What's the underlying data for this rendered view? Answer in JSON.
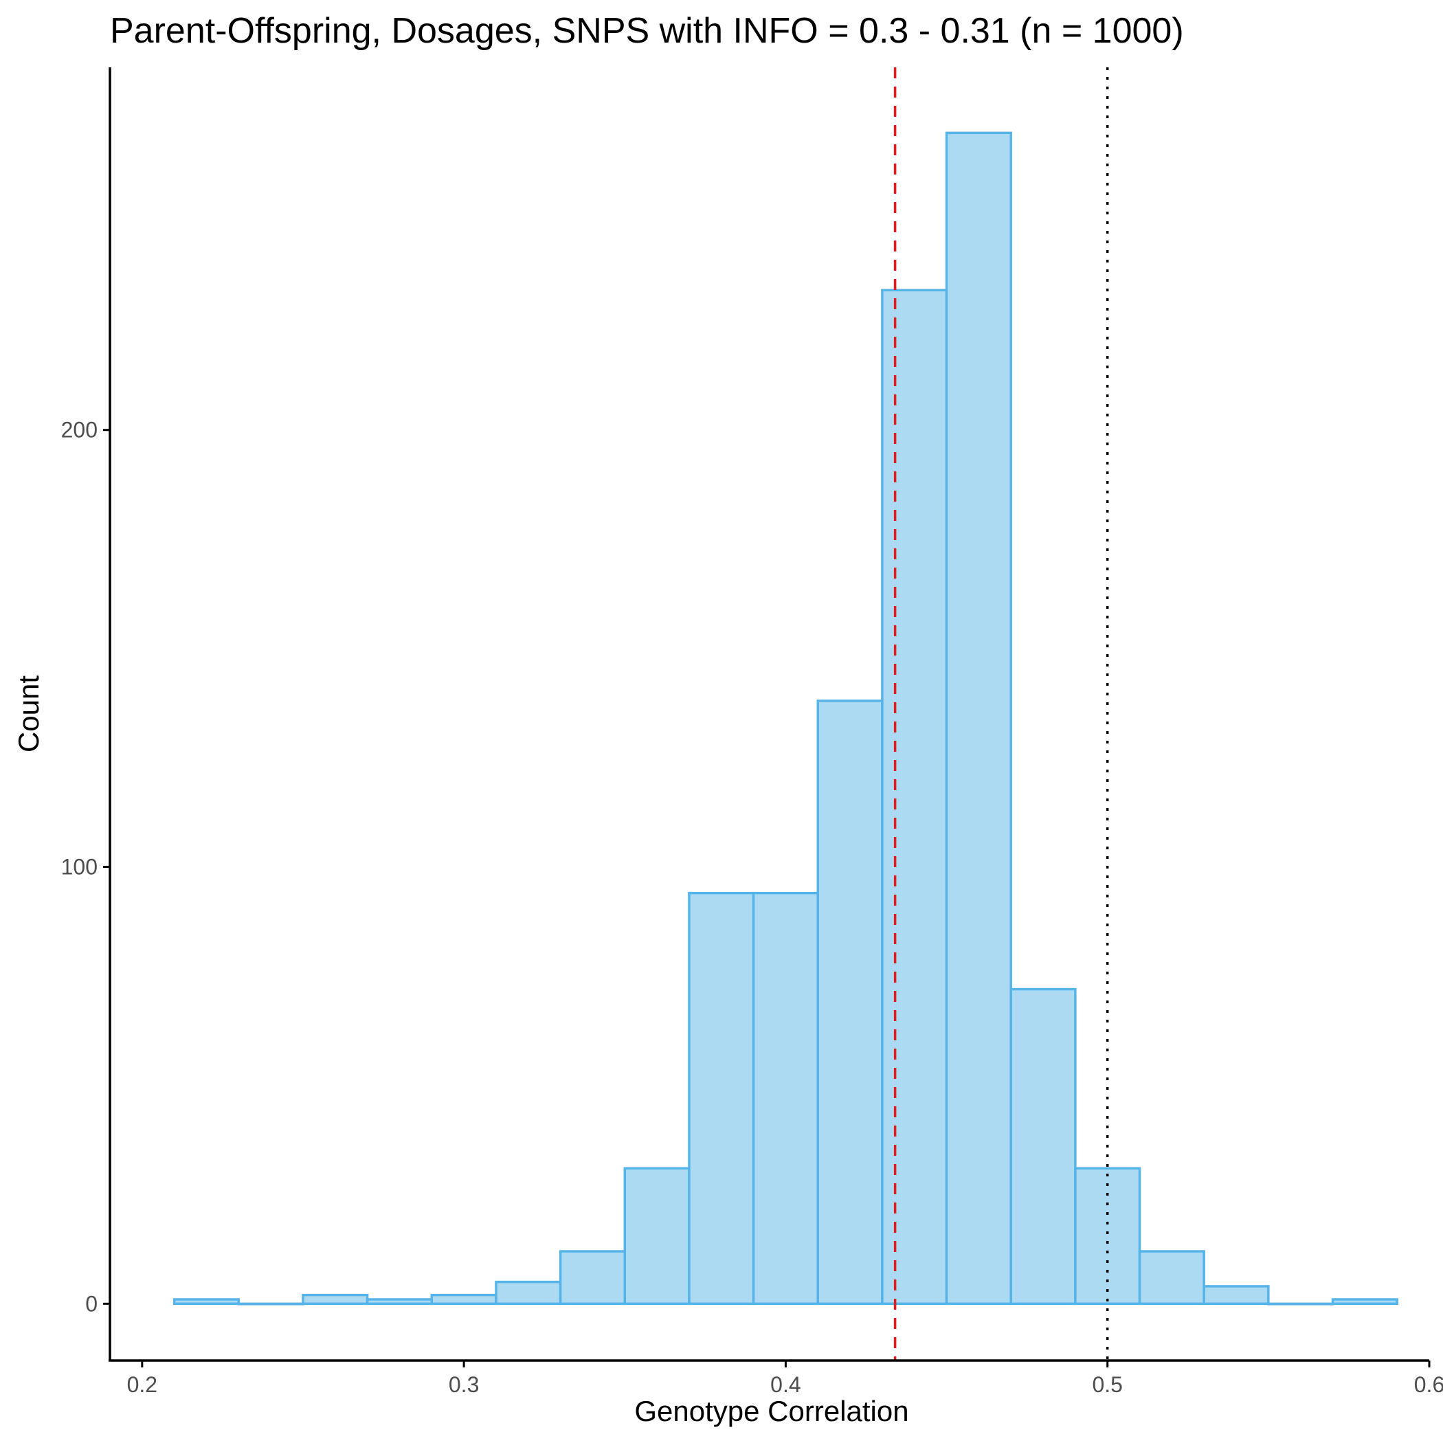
{
  "chart_data": {
    "type": "histogram",
    "title": "Parent-Offspring, Dosages, SNPS with INFO = 0.3 - 0.31 (n = 1000)",
    "xlabel": "Genotype Correlation",
    "ylabel": "Count",
    "xlim": [
      0.19,
      0.6
    ],
    "ylim": [
      -13,
      283
    ],
    "x_ticks": [
      0.2,
      0.3,
      0.4,
      0.5,
      0.6
    ],
    "x_tick_labels": [
      "0.2",
      "0.3",
      "0.4",
      "0.5",
      "0.6"
    ],
    "y_ticks": [
      0,
      100,
      200
    ],
    "y_tick_labels": [
      "0",
      "100",
      "200"
    ],
    "bin_width": 0.02,
    "bins": [
      {
        "x0": 0.21,
        "x1": 0.23,
        "count": 1
      },
      {
        "x0": 0.23,
        "x1": 0.25,
        "count": 0
      },
      {
        "x0": 0.25,
        "x1": 0.27,
        "count": 2
      },
      {
        "x0": 0.27,
        "x1": 0.29,
        "count": 1
      },
      {
        "x0": 0.29,
        "x1": 0.31,
        "count": 2
      },
      {
        "x0": 0.31,
        "x1": 0.33,
        "count": 5
      },
      {
        "x0": 0.33,
        "x1": 0.35,
        "count": 12
      },
      {
        "x0": 0.35,
        "x1": 0.37,
        "count": 31
      },
      {
        "x0": 0.37,
        "x1": 0.39,
        "count": 94
      },
      {
        "x0": 0.39,
        "x1": 0.41,
        "count": 94
      },
      {
        "x0": 0.41,
        "x1": 0.43,
        "count": 138
      },
      {
        "x0": 0.43,
        "x1": 0.45,
        "count": 232
      },
      {
        "x0": 0.45,
        "x1": 0.47,
        "count": 268
      },
      {
        "x0": 0.47,
        "x1": 0.49,
        "count": 72
      },
      {
        "x0": 0.49,
        "x1": 0.51,
        "count": 31
      },
      {
        "x0": 0.51,
        "x1": 0.53,
        "count": 12
      },
      {
        "x0": 0.53,
        "x1": 0.55,
        "count": 4
      },
      {
        "x0": 0.55,
        "x1": 0.57,
        "count": 0
      },
      {
        "x0": 0.57,
        "x1": 0.59,
        "count": 1
      }
    ],
    "reference_lines": [
      {
        "x": 0.434,
        "style": "dashed",
        "color": "#e8191c"
      },
      {
        "x": 0.5,
        "style": "dotted",
        "color": "#000000"
      }
    ],
    "bar_fill": "#acdaf2",
    "bar_stroke": "#56b4e9",
    "grid": false
  }
}
